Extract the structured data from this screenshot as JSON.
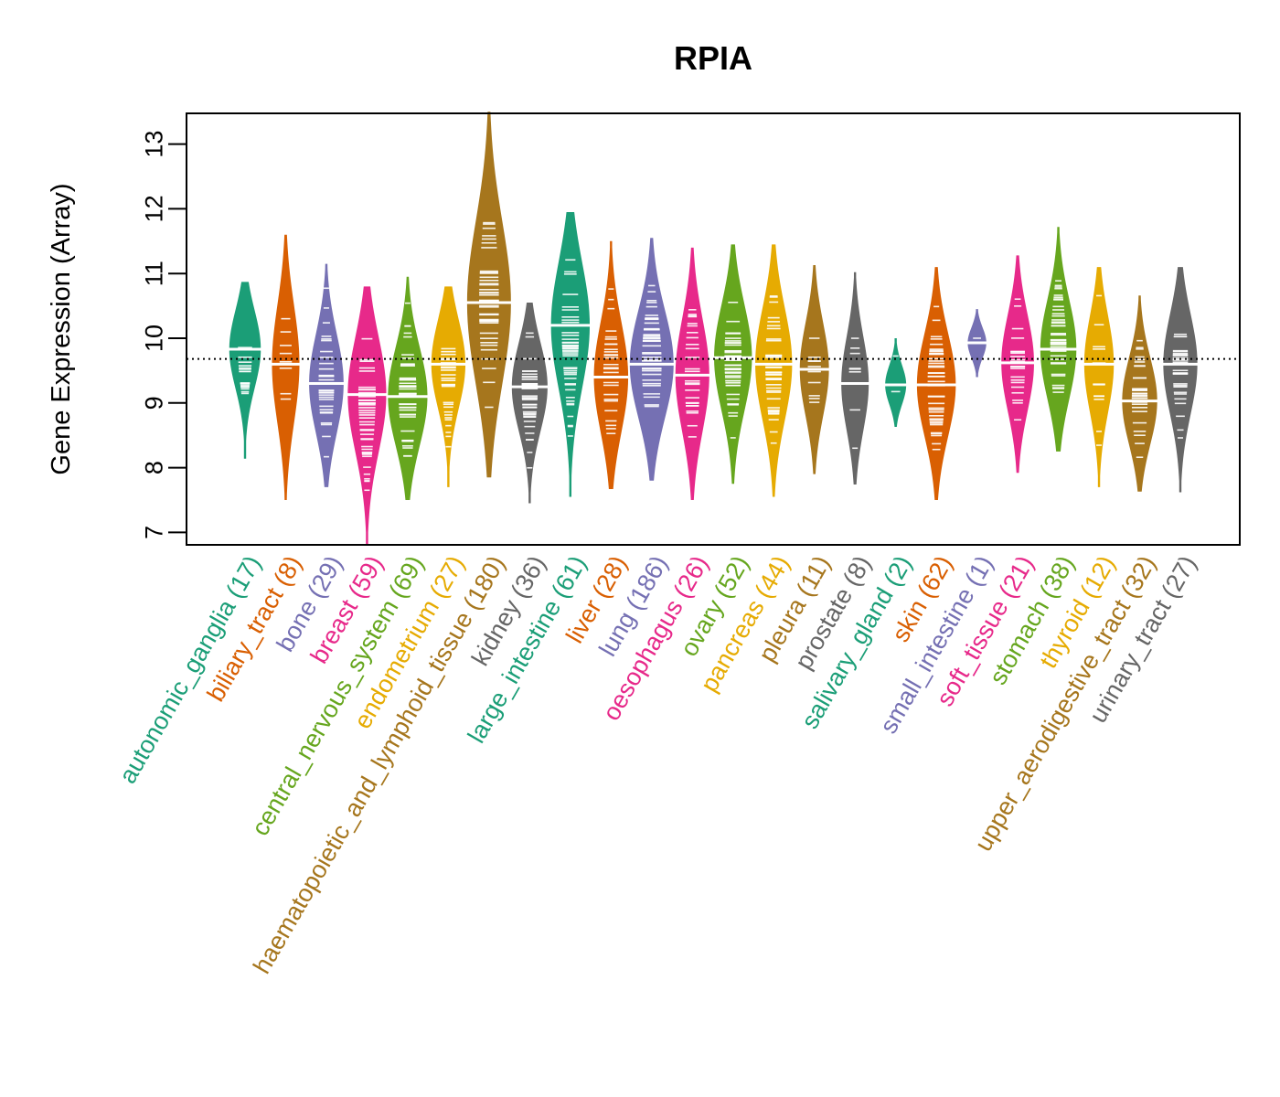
{
  "chart_data": {
    "type": "violin",
    "title": "RPIA",
    "xlabel": "",
    "ylabel": "Gene Expression (Array)",
    "ylim": [
      6.85,
      13.5
    ],
    "yticks": [
      7,
      8,
      9,
      10,
      11,
      12,
      13
    ],
    "reference_line": 9.68,
    "reference_line_style": "dotted",
    "grid": false,
    "legend": "none",
    "categories": [
      {
        "name": "autonomic_ganglia",
        "n": 17,
        "label": "autonomic_ganglia (17)",
        "color": "#1B9E77",
        "min": 8.14,
        "max": 10.87,
        "median": 9.83
      },
      {
        "name": "biliary_tract",
        "n": 8,
        "label": "biliary_tract (8)",
        "color": "#D95F02",
        "min": 7.5,
        "max": 11.6,
        "median": 9.6
      },
      {
        "name": "bone",
        "n": 29,
        "label": "bone (29)",
        "color": "#7570B3",
        "min": 7.7,
        "max": 11.15,
        "median": 9.3
      },
      {
        "name": "breast",
        "n": 59,
        "label": "breast (59)",
        "color": "#E7298A",
        "min": 6.8,
        "max": 10.8,
        "median": 9.13
      },
      {
        "name": "central_nervous_system",
        "n": 69,
        "label": "central_nervous_system (69)",
        "color": "#66A61E",
        "min": 7.5,
        "max": 10.95,
        "median": 9.1
      },
      {
        "name": "endometrium",
        "n": 27,
        "label": "endometrium (27)",
        "color": "#E6AB02",
        "min": 7.7,
        "max": 10.8,
        "median": 9.6
      },
      {
        "name": "haematopoietic_and_lymphoid_tissue",
        "n": 180,
        "label": "haematopoietic_and_lymphoid_tissue (180)",
        "color": "#A6761D",
        "min": 7.85,
        "max": 13.5,
        "median": 10.55
      },
      {
        "name": "kidney",
        "n": 36,
        "label": "kidney (36)",
        "color": "#666666",
        "min": 7.45,
        "max": 10.55,
        "median": 9.25
      },
      {
        "name": "large_intestine",
        "n": 61,
        "label": "large_intestine (61)",
        "color": "#1B9E77",
        "min": 7.55,
        "max": 11.95,
        "median": 10.2
      },
      {
        "name": "liver",
        "n": 28,
        "label": "liver (28)",
        "color": "#D95F02",
        "min": 7.67,
        "max": 11.5,
        "median": 9.4
      },
      {
        "name": "lung",
        "n": 186,
        "label": "lung (186)",
        "color": "#7570B3",
        "min": 7.8,
        "max": 11.55,
        "median": 9.6
      },
      {
        "name": "oesophagus",
        "n": 26,
        "label": "oesophagus (26)",
        "color": "#E7298A",
        "min": 7.5,
        "max": 11.4,
        "median": 9.43
      },
      {
        "name": "ovary",
        "n": 52,
        "label": "ovary (52)",
        "color": "#66A61E",
        "min": 7.75,
        "max": 11.45,
        "median": 9.7
      },
      {
        "name": "pancreas",
        "n": 44,
        "label": "pancreas (44)",
        "color": "#E6AB02",
        "min": 7.55,
        "max": 11.45,
        "median": 9.6
      },
      {
        "name": "pleura",
        "n": 11,
        "label": "pleura (11)",
        "color": "#A6761D",
        "min": 7.9,
        "max": 11.13,
        "median": 9.52
      },
      {
        "name": "prostate",
        "n": 8,
        "label": "prostate (8)",
        "color": "#666666",
        "min": 7.74,
        "max": 11.02,
        "median": 9.3
      },
      {
        "name": "salivary_gland",
        "n": 2,
        "label": "salivary_gland (2)",
        "color": "#1B9E77",
        "min": 8.63,
        "max": 10.0,
        "median": 9.28
      },
      {
        "name": "skin",
        "n": 62,
        "label": "skin (62)",
        "color": "#D95F02",
        "min": 7.5,
        "max": 11.1,
        "median": 9.28
      },
      {
        "name": "small_intestine",
        "n": 1,
        "label": "small_intestine (1)",
        "color": "#7570B3",
        "min": 9.4,
        "max": 10.45,
        "median": 9.93
      },
      {
        "name": "soft_tissue",
        "n": 21,
        "label": "soft_tissue (21)",
        "color": "#E7298A",
        "min": 7.92,
        "max": 11.28,
        "median": 9.62
      },
      {
        "name": "stomach",
        "n": 38,
        "label": "stomach (38)",
        "color": "#66A61E",
        "min": 8.25,
        "max": 11.72,
        "median": 9.83
      },
      {
        "name": "thyroid",
        "n": 12,
        "label": "thyroid (12)",
        "color": "#E6AB02",
        "min": 7.7,
        "max": 11.1,
        "median": 9.6
      },
      {
        "name": "upper_aerodigestive_tract",
        "n": 32,
        "label": "upper_aerodigestive_tract (32)",
        "color": "#A6761D",
        "min": 7.63,
        "max": 10.66,
        "median": 9.03
      },
      {
        "name": "urinary_tract",
        "n": 27,
        "label": "urinary_tract (27)",
        "color": "#666666",
        "min": 7.62,
        "max": 11.1,
        "median": 9.6
      }
    ]
  }
}
